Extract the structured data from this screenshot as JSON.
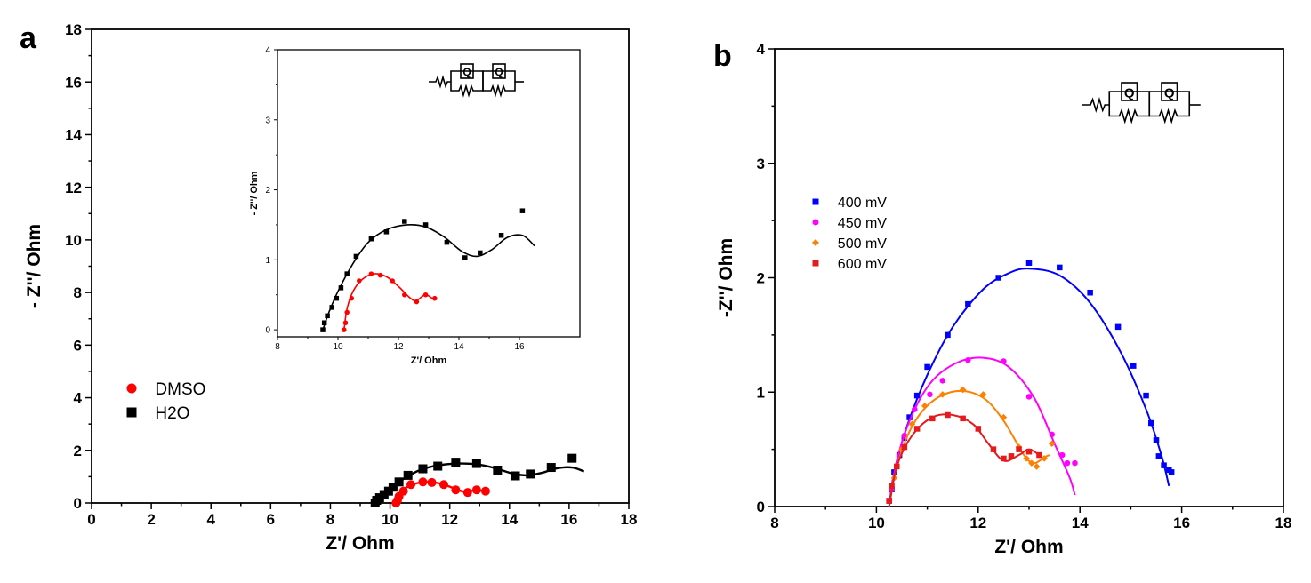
{
  "chart_data": [
    {
      "panel": "a",
      "type": "scatter",
      "xlabel": "Z'/ Ohm",
      "ylabel": "- Z''/ Ohm",
      "xlim": [
        0,
        18
      ],
      "ylim": [
        0,
        18
      ],
      "xticks": [
        0,
        2,
        4,
        6,
        8,
        10,
        12,
        14,
        16,
        18
      ],
      "yticks": [
        0,
        2,
        4,
        6,
        8,
        10,
        12,
        14,
        16,
        18
      ],
      "legend_position": "left",
      "series": [
        {
          "name": "DMSO",
          "color": "#ff0000",
          "marker": "circle",
          "points": [
            [
              10.2,
              0.0
            ],
            [
              10.25,
              0.1
            ],
            [
              10.3,
              0.25
            ],
            [
              10.45,
              0.45
            ],
            [
              10.7,
              0.7
            ],
            [
              11.1,
              0.8
            ],
            [
              11.4,
              0.78
            ],
            [
              11.8,
              0.7
            ],
            [
              12.2,
              0.5
            ],
            [
              12.6,
              0.4
            ],
            [
              12.9,
              0.5
            ],
            [
              13.2,
              0.45
            ]
          ],
          "fit": [
            [
              10.2,
              0.0
            ],
            [
              10.3,
              0.3
            ],
            [
              10.5,
              0.55
            ],
            [
              10.8,
              0.72
            ],
            [
              11.2,
              0.8
            ],
            [
              11.6,
              0.76
            ],
            [
              12.0,
              0.62
            ],
            [
              12.4,
              0.45
            ],
            [
              12.6,
              0.42
            ],
            [
              12.9,
              0.5
            ],
            [
              13.2,
              0.42
            ]
          ]
        },
        {
          "name": "H2O",
          "color": "#000000",
          "marker": "square",
          "points": [
            [
              9.5,
              0.0
            ],
            [
              9.55,
              0.1
            ],
            [
              9.65,
              0.2
            ],
            [
              9.8,
              0.32
            ],
            [
              9.95,
              0.45
            ],
            [
              10.1,
              0.6
            ],
            [
              10.3,
              0.8
            ],
            [
              10.6,
              1.05
            ],
            [
              11.1,
              1.3
            ],
            [
              11.6,
              1.4
            ],
            [
              12.2,
              1.55
            ],
            [
              12.9,
              1.5
            ],
            [
              13.6,
              1.25
            ],
            [
              14.2,
              1.03
            ],
            [
              14.7,
              1.1
            ],
            [
              15.4,
              1.35
            ],
            [
              16.1,
              1.7
            ]
          ],
          "fit": [
            [
              9.5,
              0.0
            ],
            [
              9.7,
              0.25
            ],
            [
              10.0,
              0.55
            ],
            [
              10.5,
              0.95
            ],
            [
              11.0,
              1.25
            ],
            [
              11.6,
              1.43
            ],
            [
              12.3,
              1.5
            ],
            [
              12.9,
              1.47
            ],
            [
              13.5,
              1.33
            ],
            [
              14.1,
              1.12
            ],
            [
              14.6,
              1.05
            ],
            [
              15.1,
              1.15
            ],
            [
              15.6,
              1.32
            ],
            [
              16.1,
              1.35
            ],
            [
              16.5,
              1.2
            ]
          ]
        }
      ],
      "inset": {
        "xlabel": "Z'/ Ohm",
        "ylabel": "- Z''/ Ohm",
        "xlim": [
          8,
          18
        ],
        "ylim": [
          -0.1,
          4
        ],
        "xticks": [
          8,
          10,
          12,
          14,
          16
        ],
        "yticks": [
          0,
          1,
          2,
          3,
          4
        ]
      },
      "circuit": {
        "element_label_1": "Q",
        "element_label_2": "Q"
      }
    },
    {
      "panel": "b",
      "type": "scatter",
      "xlabel": "Z'/ Ohm",
      "ylabel": "-Z''/ Ohm",
      "xlim": [
        8,
        18
      ],
      "ylim": [
        0,
        4
      ],
      "xticks": [
        8,
        10,
        12,
        14,
        16,
        18
      ],
      "yticks": [
        0,
        1,
        2,
        3,
        4
      ],
      "legend_position": "left",
      "series": [
        {
          "name": "400 mV",
          "color": "#0000ff",
          "marker": "square",
          "points": [
            [
              10.25,
              0.05
            ],
            [
              10.3,
              0.15
            ],
            [
              10.35,
              0.3
            ],
            [
              10.45,
              0.45
            ],
            [
              10.55,
              0.6
            ],
            [
              10.65,
              0.78
            ],
            [
              10.8,
              0.97
            ],
            [
              11.0,
              1.22
            ],
            [
              11.4,
              1.5
            ],
            [
              11.8,
              1.77
            ],
            [
              12.4,
              2.0
            ],
            [
              13.0,
              2.13
            ],
            [
              13.6,
              2.09
            ],
            [
              14.2,
              1.87
            ],
            [
              14.75,
              1.57
            ],
            [
              15.05,
              1.23
            ],
            [
              15.3,
              0.97
            ],
            [
              15.4,
              0.73
            ],
            [
              15.5,
              0.58
            ],
            [
              15.55,
              0.44
            ],
            [
              15.65,
              0.36
            ],
            [
              15.75,
              0.32
            ],
            [
              15.8,
              0.3
            ]
          ],
          "fit": [
            [
              10.25,
              0.0
            ],
            [
              10.35,
              0.3
            ],
            [
              10.6,
              0.7
            ],
            [
              11.0,
              1.15
            ],
            [
              11.5,
              1.57
            ],
            [
              12.1,
              1.9
            ],
            [
              12.6,
              2.04
            ],
            [
              13.0,
              2.08
            ],
            [
              13.6,
              2.02
            ],
            [
              14.2,
              1.78
            ],
            [
              14.8,
              1.35
            ],
            [
              15.3,
              0.85
            ],
            [
              15.6,
              0.45
            ],
            [
              15.75,
              0.18
            ]
          ]
        },
        {
          "name": "450 mV",
          "color": "#ff00ff",
          "marker": "circle",
          "points": [
            [
              10.25,
              0.05
            ],
            [
              10.3,
              0.15
            ],
            [
              10.4,
              0.35
            ],
            [
              10.55,
              0.62
            ],
            [
              10.75,
              0.85
            ],
            [
              11.05,
              0.98
            ],
            [
              11.3,
              1.1
            ],
            [
              11.8,
              1.28
            ],
            [
              12.5,
              1.27
            ],
            [
              13.0,
              0.96
            ],
            [
              13.45,
              0.63
            ],
            [
              13.65,
              0.45
            ],
            [
              13.75,
              0.38
            ],
            [
              13.9,
              0.38
            ]
          ],
          "fit": [
            [
              10.25,
              0.0
            ],
            [
              10.4,
              0.4
            ],
            [
              10.7,
              0.8
            ],
            [
              11.1,
              1.1
            ],
            [
              11.6,
              1.26
            ],
            [
              12.1,
              1.3
            ],
            [
              12.6,
              1.22
            ],
            [
              13.1,
              0.95
            ],
            [
              13.5,
              0.55
            ],
            [
              13.8,
              0.25
            ],
            [
              13.9,
              0.1
            ]
          ]
        },
        {
          "name": "500 mV",
          "color": "#ff7f00",
          "marker": "diamond",
          "points": [
            [
              10.25,
              0.05
            ],
            [
              10.35,
              0.25
            ],
            [
              10.5,
              0.5
            ],
            [
              10.7,
              0.72
            ],
            [
              10.95,
              0.88
            ],
            [
              11.3,
              0.98
            ],
            [
              11.7,
              1.02
            ],
            [
              12.1,
              0.98
            ],
            [
              12.5,
              0.78
            ],
            [
              12.8,
              0.52
            ],
            [
              12.95,
              0.42
            ],
            [
              13.05,
              0.38
            ],
            [
              13.15,
              0.35
            ],
            [
              13.3,
              0.42
            ],
            [
              13.45,
              0.55
            ]
          ],
          "fit": [
            [
              10.25,
              0.0
            ],
            [
              10.4,
              0.35
            ],
            [
              10.7,
              0.7
            ],
            [
              11.1,
              0.92
            ],
            [
              11.6,
              1.01
            ],
            [
              12.1,
              0.95
            ],
            [
              12.5,
              0.75
            ],
            [
              12.9,
              0.45
            ],
            [
              13.1,
              0.38
            ],
            [
              13.3,
              0.43
            ],
            [
              13.4,
              0.45
            ]
          ]
        },
        {
          "name": "600 mV",
          "color": "#e41a1c",
          "marker": "square",
          "points": [
            [
              10.25,
              0.05
            ],
            [
              10.3,
              0.18
            ],
            [
              10.4,
              0.35
            ],
            [
              10.55,
              0.52
            ],
            [
              10.8,
              0.68
            ],
            [
              11.1,
              0.77
            ],
            [
              11.4,
              0.8
            ],
            [
              11.7,
              0.77
            ],
            [
              12.0,
              0.68
            ],
            [
              12.3,
              0.5
            ],
            [
              12.5,
              0.42
            ],
            [
              12.65,
              0.44
            ],
            [
              12.8,
              0.5
            ],
            [
              13.0,
              0.48
            ],
            [
              13.2,
              0.45
            ]
          ],
          "fit": [
            [
              10.25,
              0.0
            ],
            [
              10.4,
              0.35
            ],
            [
              10.7,
              0.62
            ],
            [
              11.1,
              0.78
            ],
            [
              11.5,
              0.8
            ],
            [
              11.9,
              0.72
            ],
            [
              12.2,
              0.55
            ],
            [
              12.5,
              0.4
            ],
            [
              12.8,
              0.45
            ],
            [
              13.0,
              0.5
            ],
            [
              13.2,
              0.45
            ]
          ]
        }
      ],
      "circuit": {
        "element_label_1": "Q",
        "element_label_2": "Q"
      }
    }
  ]
}
